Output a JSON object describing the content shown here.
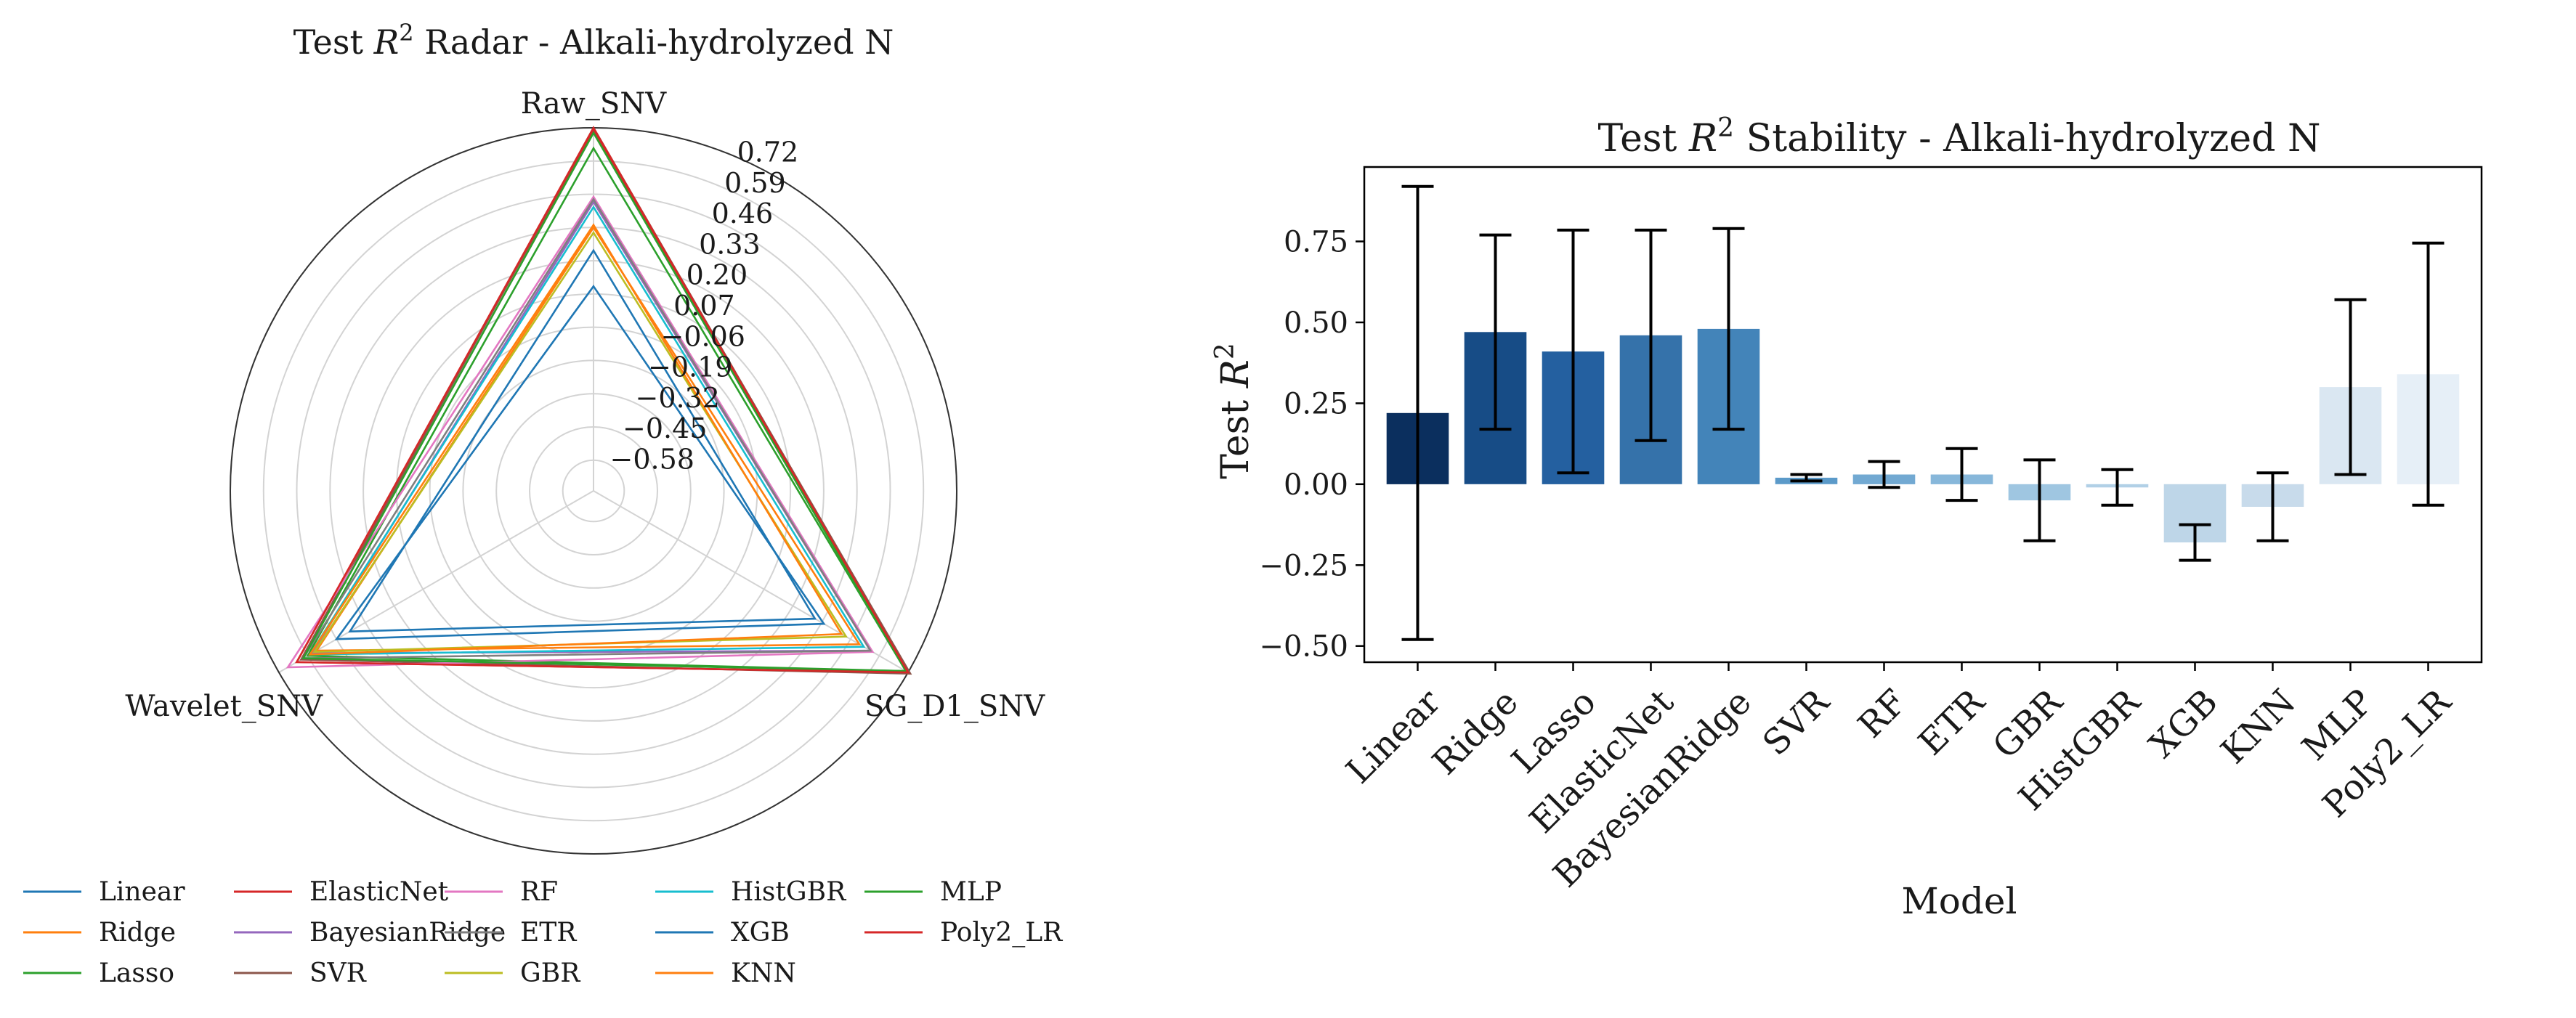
{
  "chart_data": [
    {
      "type": "radar",
      "title": "Test R² Radar - Alkali-hydrolyzed N",
      "title_parts": {
        "pre": "Test ",
        "sym": "R",
        "sup": "2",
        "post": " Radar - Alkali-hydrolyzed N"
      },
      "axes": [
        "Raw_SNV",
        "SG_D1_SNV",
        "Wavelet_SNV"
      ],
      "rlim": [
        -0.7,
        0.72
      ],
      "radial_ticks": [
        -0.58,
        -0.45,
        -0.32,
        -0.19,
        -0.06,
        0.07,
        0.2,
        0.33,
        0.46,
        0.59,
        0.72
      ],
      "radial_tick_labels": [
        "−0.58",
        "−0.45",
        "−0.32",
        "−0.19",
        "−0.06",
        "0.07",
        "0.20",
        "0.33",
        "0.46",
        "0.59",
        "0.72"
      ],
      "legend_position": "bottom",
      "series": [
        {
          "name": "Linear",
          "color": "#1f77b4",
          "values": [
            0.24,
            0.3,
            0.4
          ]
        },
        {
          "name": "Ridge",
          "color": "#ff7f0e",
          "values": [
            0.33,
            0.5,
            0.55
          ]
        },
        {
          "name": "Lasso",
          "color": "#2ca02c",
          "values": [
            0.64,
            0.71,
            0.59
          ]
        },
        {
          "name": "ElasticNet",
          "color": "#d62728",
          "values": [
            0.71,
            0.72,
            0.64
          ]
        },
        {
          "name": "BayesianRidge",
          "color": "#9467bd",
          "values": [
            0.43,
            0.55,
            0.57
          ]
        },
        {
          "name": "SVR",
          "color": "#8c564b",
          "values": [
            0.72,
            0.73,
            0.62
          ]
        },
        {
          "name": "RF",
          "color": "#e377c2",
          "values": [
            0.45,
            0.56,
            0.68
          ]
        },
        {
          "name": "ETR",
          "color": "#7f7f7f",
          "values": [
            0.44,
            0.55,
            0.61
          ]
        },
        {
          "name": "GBR",
          "color": "#bcbd22",
          "values": [
            0.31,
            0.44,
            0.56
          ]
        },
        {
          "name": "HistGBR",
          "color": "#17becf",
          "values": [
            0.41,
            0.52,
            0.58
          ]
        },
        {
          "name": "XGB",
          "color": "#1f77b4",
          "values": [
            0.1,
            0.34,
            0.46
          ]
        },
        {
          "name": "KNN",
          "color": "#ff7f0e",
          "values": [
            0.34,
            0.42,
            0.58
          ]
        },
        {
          "name": "MLP",
          "color": "#2ca02c",
          "values": [
            0.7,
            0.71,
            0.61
          ]
        },
        {
          "name": "Poly2_LR",
          "color": "#d62728",
          "values": [
            0.72,
            0.72,
            0.64
          ]
        }
      ]
    },
    {
      "type": "bar",
      "title": "Test R² Stability - Alkali-hydrolyzed N",
      "title_parts": {
        "pre": "Test ",
        "sym": "R",
        "sup": "2",
        "post": " Stability - Alkali-hydrolyzed N"
      },
      "xlabel": "Model",
      "ylabel_parts": {
        "pre": "Test ",
        "sym": "R",
        "sup": "2"
      },
      "ylim": [
        -0.55,
        0.98
      ],
      "yticks": [
        -0.5,
        -0.25,
        0.0,
        0.25,
        0.5,
        0.75
      ],
      "ytick_labels": [
        "−0.50",
        "−0.25",
        "0.00",
        "0.25",
        "0.50",
        "0.75"
      ],
      "categories": [
        "Linear",
        "Ridge",
        "Lasso",
        "ElasticNet",
        "BayesianRidge",
        "SVR",
        "RF",
        "ETR",
        "GBR",
        "HistGBR",
        "XGB",
        "KNN",
        "MLP",
        "Poly2_LR"
      ],
      "values": [
        0.22,
        0.47,
        0.41,
        0.46,
        0.48,
        0.02,
        0.03,
        0.03,
        -0.05,
        -0.01,
        -0.18,
        -0.07,
        0.3,
        0.34
      ],
      "errors": [
        0.7,
        0.3,
        0.375,
        0.325,
        0.31,
        0.01,
        0.04,
        0.08,
        0.125,
        0.055,
        0.055,
        0.105,
        0.27,
        0.405
      ],
      "colors": [
        "#0b2f5e",
        "#174c86",
        "#2460a0",
        "#3572aa",
        "#4384b9",
        "#5b9ac9",
        "#72a9d2",
        "#87b7da",
        "#9fc6e1",
        "#b1d0e6",
        "#bed6e8",
        "#c8dbeb",
        "#dae7f2",
        "#e6eff7"
      ]
    }
  ]
}
